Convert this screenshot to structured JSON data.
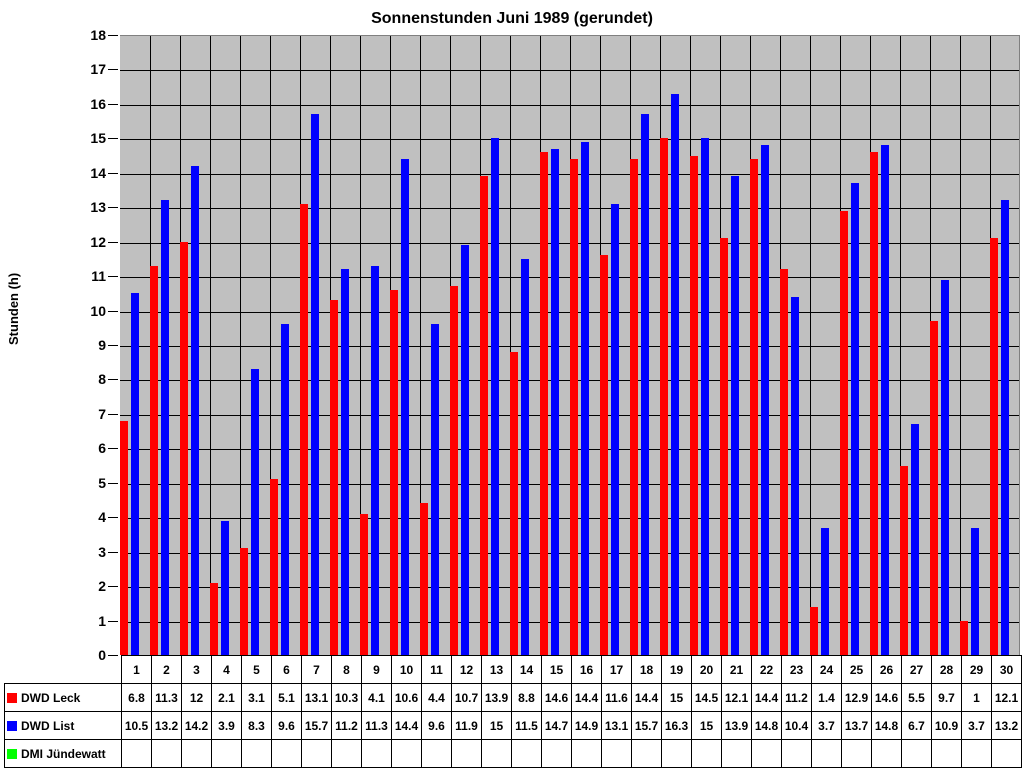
{
  "chart_data": {
    "type": "bar",
    "title": "Sonnenstunden Juni 1989 (gerundet)",
    "xlabel": "",
    "ylabel": "Stunden (h)",
    "ylim": [
      0,
      18
    ],
    "yticks": [
      0,
      1,
      2,
      3,
      4,
      5,
      6,
      7,
      8,
      9,
      10,
      11,
      12,
      13,
      14,
      15,
      16,
      17,
      18
    ],
    "grid": true,
    "legend_position": "data-table-left",
    "categories": [
      "1",
      "2",
      "3",
      "4",
      "5",
      "6",
      "7",
      "8",
      "9",
      "10",
      "11",
      "12",
      "13",
      "14",
      "15",
      "16",
      "17",
      "18",
      "19",
      "20",
      "21",
      "22",
      "23",
      "24",
      "25",
      "26",
      "27",
      "28",
      "29",
      "30"
    ],
    "series": [
      {
        "name": "DWD Leck",
        "color": "#ff0000",
        "values": [
          6.8,
          11.3,
          12,
          2.1,
          3.1,
          5.1,
          13.1,
          10.3,
          4.1,
          10.6,
          4.4,
          10.7,
          13.9,
          8.8,
          14.6,
          14.4,
          11.6,
          14.4,
          15,
          14.5,
          12.1,
          14.4,
          11.2,
          1.4,
          12.9,
          14.6,
          5.5,
          9.7,
          1,
          12.1
        ]
      },
      {
        "name": "DWD List",
        "color": "#0000ff",
        "values": [
          10.5,
          13.2,
          14.2,
          3.9,
          8.3,
          9.6,
          15.7,
          11.2,
          11.3,
          14.4,
          9.6,
          11.9,
          15,
          11.5,
          14.7,
          14.9,
          13.1,
          15.7,
          16.3,
          15,
          13.9,
          14.8,
          10.4,
          3.7,
          13.7,
          14.8,
          6.7,
          10.9,
          3.7,
          13.2
        ]
      },
      {
        "name": "DMI Jündewatt",
        "color": "#00ff00",
        "values": [
          null,
          null,
          null,
          null,
          null,
          null,
          null,
          null,
          null,
          null,
          null,
          null,
          null,
          null,
          null,
          null,
          null,
          null,
          null,
          null,
          null,
          null,
          null,
          null,
          null,
          null,
          null,
          null,
          null,
          null
        ]
      }
    ]
  }
}
